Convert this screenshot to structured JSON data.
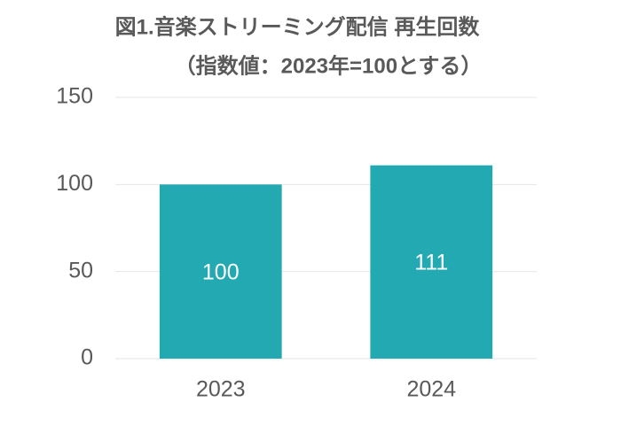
{
  "chart_data": {
    "type": "bar",
    "title": "図1.音楽ストリーミング配信 再生回数",
    "subtitle": "（指数値：2023年=100とする）",
    "categories": [
      "2023",
      "2024"
    ],
    "values": [
      100,
      111
    ],
    "color": "#23a9b1",
    "ylim": [
      0,
      150
    ],
    "yticks": [
      0,
      50,
      100,
      150
    ],
    "grid": true,
    "data_labels": true
  }
}
